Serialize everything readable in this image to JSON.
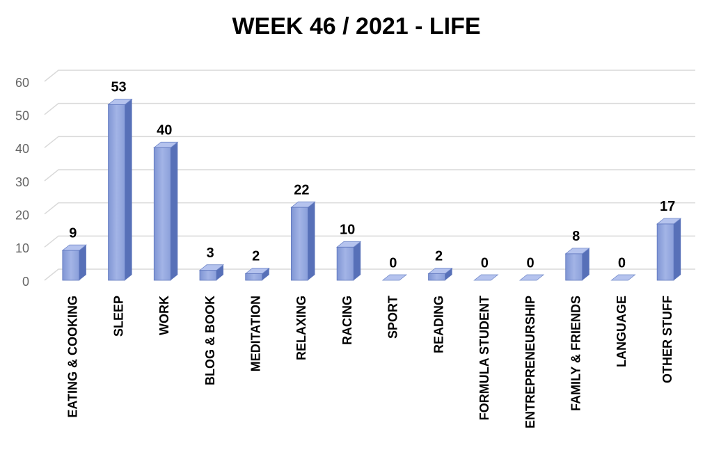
{
  "chart_data": {
    "type": "bar3d",
    "title": "WEEK 46  / 2021 - LIFE",
    "categories": [
      "EATING & COOKING",
      "SLEEP",
      "WORK",
      "BLOG & BOOK",
      "MEDITATION",
      "RELAXING",
      "RACING",
      "SPORT",
      "READING",
      "FORMULA STUDENT",
      "ENTREPRENEURSHIP",
      "FAMILY & FRIENDS",
      "LANGUAGE",
      "OTHER STUFF"
    ],
    "values": [
      9,
      53,
      40,
      3,
      2,
      22,
      10,
      0,
      2,
      0,
      0,
      8,
      0,
      17
    ],
    "color": "#8da2dc",
    "ylim": [
      0,
      60
    ],
    "yticks": [
      0,
      10,
      20,
      30,
      40,
      50,
      60
    ],
    "grid": true
  }
}
